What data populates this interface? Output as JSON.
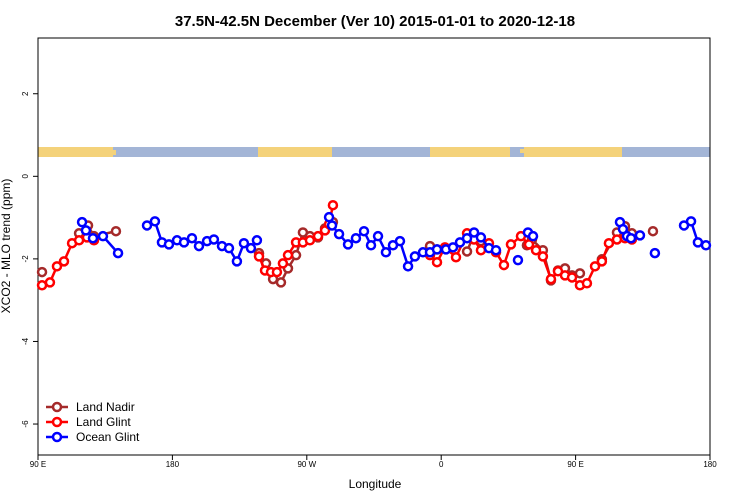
{
  "chart_data": {
    "type": "line",
    "title": "37.5N-42.5N December (Ver 10)   2015-01-01 to 2020-12-18",
    "x_label": "Longitude",
    "y_label": "XCO2 - MLO trend (ppm)",
    "xlim": [
      90,
      540
    ],
    "ylim": [
      -6.75,
      3.35
    ],
    "xticks": [
      {
        "value": 90,
        "label": "90 E"
      },
      {
        "value": 180,
        "label": "180"
      },
      {
        "value": 270,
        "label": "90 W"
      },
      {
        "value": 360,
        "label": "0"
      },
      {
        "value": 450,
        "label": "90 E"
      },
      {
        "value": 540,
        "label": "180"
      }
    ],
    "yticks": [
      2,
      0,
      -2,
      -4,
      -6
    ],
    "legend": "bottom-left",
    "series": [
      {
        "name": "Land Nadir",
        "color": "#a52a2a",
        "x": [
          92.7,
          null,
          117.5,
          123.5,
          127.5,
          142.2,
          null,
          238.0,
          242.7,
          247.4,
          252.7,
          257.4,
          262.8,
          267.4,
          272.1,
          277.5,
          282.2,
          287.5,
          null,
          352.5,
          357.2,
          null,
          377.3,
          382.0,
          386.6,
          null,
          417.4,
          420.8,
          428.1,
          433.5,
          438.2,
          442.9,
          447.6,
          452.9,
          null,
          467.6,
          477.7,
          483.1,
          487.7,
          null,
          501.8
        ],
        "values": [
          -2.32,
          null,
          -1.38,
          -1.19,
          -1.45,
          -1.33,
          null,
          -1.86,
          -2.11,
          -2.49,
          -2.57,
          -2.23,
          -1.91,
          -1.36,
          -1.45,
          -1.48,
          -1.26,
          -1.11,
          null,
          -1.69,
          -1.77,
          null,
          -1.82,
          -1.4,
          -1.57,
          null,
          -1.67,
          -1.53,
          -1.79,
          -2.52,
          -2.28,
          -2.23,
          -2.4,
          -2.35,
          null,
          -2.01,
          -1.36,
          -1.21,
          -1.38,
          null,
          -1.33
        ]
      },
      {
        "name": "Land Glint",
        "color": "#ff0000",
        "x": [
          92.7,
          98.0,
          102.7,
          107.4,
          112.8,
          117.5,
          122.8,
          127.5,
          null,
          238.0,
          242.0,
          246.0,
          250.0,
          254.0,
          257.4,
          262.8,
          267.4,
          272.1,
          277.5,
          282.2,
          284.9,
          287.5,
          null,
          352.5,
          357.2,
          362.5,
          369.9,
          377.3,
          382.0,
          386.6,
          392.0,
          396.7,
          402.0,
          406.7,
          413.4,
          418.8,
          423.5,
          428.1,
          433.5,
          438.2,
          442.9,
          447.6,
          452.9,
          457.6,
          463.0,
          467.6,
          472.3,
          477.7,
          483.1,
          487.7
        ],
        "values": [
          -2.64,
          -2.57,
          -2.18,
          -2.06,
          -1.62,
          -1.55,
          -1.48,
          -1.55,
          null,
          -1.94,
          -2.28,
          -2.32,
          -2.32,
          -2.11,
          -1.91,
          -1.6,
          -1.6,
          -1.55,
          -1.45,
          -1.31,
          -1.16,
          -0.7,
          null,
          -1.91,
          -2.08,
          -1.72,
          -1.96,
          -1.38,
          -1.53,
          -1.79,
          -1.62,
          -1.84,
          -2.15,
          -1.65,
          -1.45,
          -1.65,
          -1.79,
          -1.94,
          -2.49,
          -2.3,
          -2.4,
          -2.45,
          -2.64,
          -2.59,
          -2.18,
          -2.06,
          -1.62,
          -1.53,
          -1.5,
          -1.53
        ]
      },
      {
        "name": "Ocean Glint",
        "color": "#0000ff",
        "x": [
          119.5,
          122.1,
          126.8,
          133.5,
          143.6,
          null,
          163.0,
          168.3,
          173.0,
          177.7,
          183.1,
          187.8,
          193.1,
          197.8,
          203.2,
          207.8,
          213.2,
          217.9,
          223.2,
          227.9,
          232.6,
          236.6,
          null,
          284.9,
          286.9,
          291.6,
          297.6,
          302.9,
          308.3,
          313.0,
          317.7,
          323.0,
          327.7,
          332.4,
          337.8,
          342.4,
          347.8,
          352.5,
          357.2,
          363.2,
          367.9,
          372.6,
          377.3,
          382.0,
          386.6,
          392.0,
          396.7,
          null,
          411.4,
          null,
          418.1,
          421.5,
          null,
          479.7,
          481.7,
          484.4,
          487.1,
          493.1,
          null,
          503.1,
          null,
          522.6,
          527.3,
          531.9,
          537.3
        ],
        "values": [
          -1.11,
          -1.31,
          -1.5,
          -1.45,
          -1.86,
          null,
          -1.19,
          -1.09,
          -1.6,
          -1.65,
          -1.55,
          -1.6,
          -1.5,
          -1.69,
          -1.57,
          -1.53,
          -1.69,
          -1.74,
          -2.06,
          -1.62,
          -1.74,
          -1.55,
          null,
          -0.99,
          -1.19,
          -1.4,
          -1.65,
          -1.5,
          -1.33,
          -1.67,
          -1.45,
          -1.84,
          -1.67,
          -1.57,
          -2.18,
          -1.94,
          -1.84,
          -1.84,
          -1.77,
          -1.77,
          -1.72,
          -1.6,
          -1.5,
          -1.36,
          -1.48,
          -1.74,
          -1.79,
          null,
          -2.03,
          null,
          -1.36,
          -1.45,
          null,
          -1.11,
          -1.28,
          -1.45,
          -1.5,
          -1.43,
          null,
          -1.86,
          null,
          -1.19,
          -1.09,
          -1.6,
          -1.67
        ]
      }
    ]
  }
}
